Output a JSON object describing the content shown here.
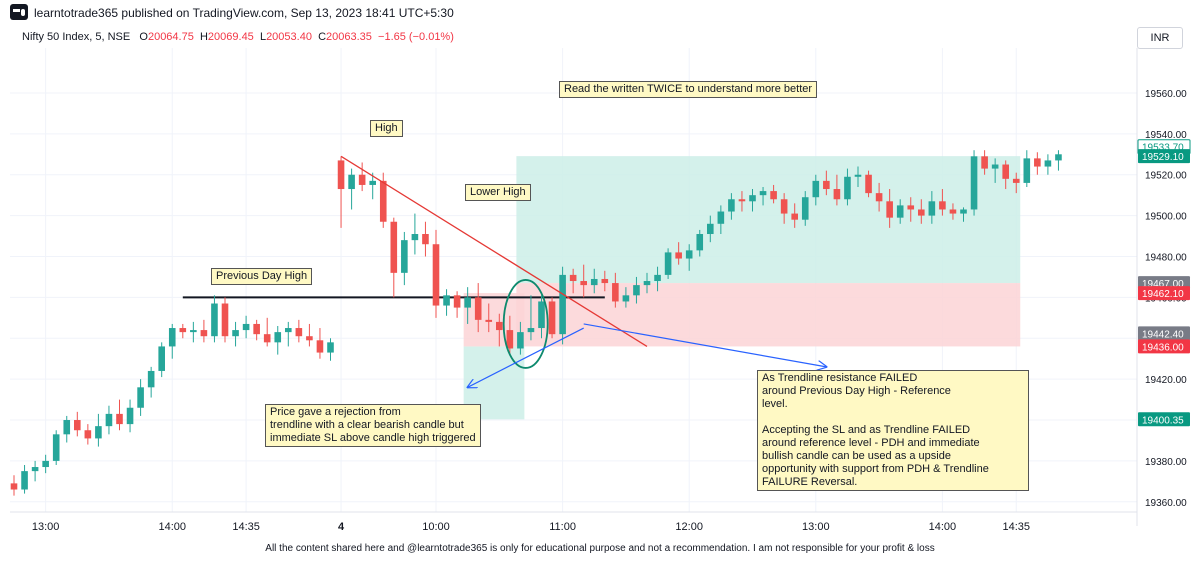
{
  "header": {
    "publish_line": "learntotrade365 published on TradingView.com, Sep 13, 2023 18:41 UTC+5:30",
    "symbol": "Nifty 50 Index, 5, NSE",
    "ohlc": {
      "o_label": "O",
      "o_value": "20064.75",
      "h_label": "H",
      "h_value": "20069.45",
      "l_label": "L",
      "l_value": "20053.40",
      "c_label": "C",
      "c_value": "20063.35",
      "change": "−1.65 (−0.01%)"
    },
    "currency_button": "INR"
  },
  "footer_text": "All the content shared here and @learntotrade365 is only for educational purpose and not a recommendation. I am not responsible for your profit & loss",
  "colors": {
    "bull": "#26a69a",
    "bear": "#ef5350",
    "trendline": "#e53935",
    "arrow": "#2962ff",
    "pdh_line": "#131722",
    "ellipse": "#0e8a6e",
    "profit_zone": "#cdeee7",
    "loss_zone": "#fbd4d6",
    "note_bg": "#fff9c4"
  },
  "annotations": {
    "top_note": "Read the written TWICE to understand more better",
    "high": "High",
    "lower_high": "Lower High",
    "pdh": "Previous Day High",
    "rejection_note": "Price gave a rejection from\ntrendline with a clear bearish candle but\nimmediate SL above candle high triggered",
    "failure_note": "As Trendline resistance FAILED\naround Previous Day High - Reference\nlevel.\n\nAccepting the SL and as Trendline FAILED\naround reference level - PDH and immediate\nbullish candle can be used as a upside\nopportunity with support from PDH & Trendline\nFAILURE Reversal."
  },
  "chart_data": {
    "type": "candlestick",
    "title": "",
    "xlabel": "",
    "ylabel": "",
    "ylim": [
      19355,
      19582
    ],
    "grid": true,
    "y_ticks": [
      19360,
      19380,
      19400,
      19420,
      19440,
      19460,
      19480,
      19500,
      19520,
      19540,
      19560
    ],
    "y_tick_labels": [
      "19360.00",
      "19380.00",
      "19400.00",
      "19420.00",
      "19440.00",
      "19460.00",
      "19480.00",
      "19500.00",
      "19520.00",
      "19540.00",
      "19560.00"
    ],
    "x_tick_labels": [
      {
        "label": "13:00",
        "bar": 3
      },
      {
        "label": "14:00",
        "bar": 15
      },
      {
        "label": "14:35",
        "bar": 22
      },
      {
        "label": "4",
        "bar": 31
      },
      {
        "label": "10:00",
        "bar": 40
      },
      {
        "label": "11:00",
        "bar": 52
      },
      {
        "label": "12:00",
        "bar": 64
      },
      {
        "label": "13:00",
        "bar": 76
      },
      {
        "label": "14:00",
        "bar": 88
      },
      {
        "label": "14:35",
        "bar": 95
      }
    ],
    "candles": [
      [
        19369,
        19373,
        19363,
        19366
      ],
      [
        19366,
        19378,
        19364,
        19375
      ],
      [
        19375,
        19380,
        19370,
        19377
      ],
      [
        19377,
        19383,
        19374,
        19380
      ],
      [
        19380,
        19395,
        19378,
        19393
      ],
      [
        19393,
        19402,
        19389,
        19400
      ],
      [
        19400,
        19404,
        19392,
        19395
      ],
      [
        19395,
        19398,
        19388,
        19391
      ],
      [
        19391,
        19403,
        19387,
        19397
      ],
      [
        19397,
        19407,
        19393,
        19403
      ],
      [
        19403,
        19410,
        19395,
        19398
      ],
      [
        19398,
        19410,
        19394,
        19406
      ],
      [
        19406,
        19420,
        19402,
        19416
      ],
      [
        19416,
        19426,
        19411,
        19424
      ],
      [
        19424,
        19438,
        19421,
        19436
      ],
      [
        19436,
        19447,
        19430,
        19445
      ],
      [
        19445,
        19447,
        19440,
        19443
      ],
      [
        19443,
        19448,
        19438,
        19444
      ],
      [
        19444,
        19449,
        19438,
        19441
      ],
      [
        19441,
        19461,
        19438,
        19457
      ],
      [
        19457,
        19460,
        19438,
        19441
      ],
      [
        19441,
        19448,
        19436,
        19444
      ],
      [
        19444,
        19451,
        19440,
        19447
      ],
      [
        19447,
        19449,
        19439,
        19442
      ],
      [
        19442,
        19450,
        19436,
        19438
      ],
      [
        19438,
        19446,
        19432,
        19443
      ],
      [
        19443,
        19448,
        19436,
        19445
      ],
      [
        19445,
        19449,
        19438,
        19441
      ],
      [
        19441,
        19447,
        19436,
        19439
      ],
      [
        19439,
        19445,
        19430,
        19433
      ],
      [
        19433,
        19440,
        19429,
        19438
      ],
      [
        19527,
        19529,
        19494,
        19513
      ],
      [
        19513,
        19523,
        19503,
        19520
      ],
      [
        19520,
        19526,
        19512,
        19515
      ],
      [
        19515,
        19521,
        19508,
        19517
      ],
      [
        19517,
        19521,
        19494,
        19497
      ],
      [
        19497,
        19499,
        19460,
        19472
      ],
      [
        19472,
        19492,
        19466,
        19488
      ],
      [
        19488,
        19501,
        19481,
        19491
      ],
      [
        19491,
        19497,
        19480,
        19486
      ],
      [
        19486,
        19493,
        19450,
        19456
      ],
      [
        19456,
        19464,
        19451,
        19461
      ],
      [
        19461,
        19463,
        19450,
        19455
      ],
      [
        19455,
        19465,
        19447,
        19460
      ],
      [
        19460,
        19467,
        19443,
        19449
      ],
      [
        19449,
        19457,
        19443,
        19448
      ],
      [
        19448,
        19452,
        19436,
        19444
      ],
      [
        19444,
        19451,
        19432,
        19435
      ],
      [
        19435,
        19448,
        19432,
        19443
      ],
      [
        19443,
        19461,
        19439,
        19445
      ],
      [
        19445,
        19461,
        19440,
        19458
      ],
      [
        19458,
        19460,
        19440,
        19442
      ],
      [
        19442,
        19475,
        19437,
        19471
      ],
      [
        19471,
        19474,
        19462,
        19468
      ],
      [
        19468,
        19476,
        19460,
        19466
      ],
      [
        19466,
        19474,
        19462,
        19469
      ],
      [
        19469,
        19473,
        19463,
        19467
      ],
      [
        19467,
        19472,
        19455,
        19458
      ],
      [
        19458,
        19465,
        19455,
        19461
      ],
      [
        19461,
        19470,
        19457,
        19466
      ],
      [
        19466,
        19472,
        19462,
        19468
      ],
      [
        19468,
        19475,
        19463,
        19471
      ],
      [
        19471,
        19484,
        19469,
        19482
      ],
      [
        19482,
        19487,
        19476,
        19479
      ],
      [
        19479,
        19486,
        19473,
        19483
      ],
      [
        19483,
        19493,
        19480,
        19491
      ],
      [
        19491,
        19500,
        19487,
        19496
      ],
      [
        19496,
        19505,
        19491,
        19502
      ],
      [
        19502,
        19511,
        19498,
        19508
      ],
      [
        19508,
        19512,
        19502,
        19507
      ],
      [
        19507,
        19513,
        19502,
        19510
      ],
      [
        19510,
        19514,
        19505,
        19512
      ],
      [
        19512,
        19515,
        19506,
        19508
      ],
      [
        19508,
        19511,
        19496,
        19501
      ],
      [
        19501,
        19506,
        19494,
        19498
      ],
      [
        19498,
        19512,
        19495,
        19509
      ],
      [
        19509,
        19520,
        19505,
        19517
      ],
      [
        19517,
        19522,
        19510,
        19513
      ],
      [
        19513,
        19520,
        19505,
        19508
      ],
      [
        19508,
        19523,
        19505,
        19519
      ],
      [
        19519,
        19524,
        19514,
        19520
      ],
      [
        19520,
        19522,
        19509,
        19511
      ],
      [
        19511,
        19516,
        19502,
        19507
      ],
      [
        19507,
        19513,
        19494,
        19499
      ],
      [
        19499,
        19508,
        19496,
        19505
      ],
      [
        19505,
        19509,
        19497,
        19503
      ],
      [
        19503,
        19508,
        19496,
        19500
      ],
      [
        19500,
        19512,
        19496,
        19507
      ],
      [
        19507,
        19513,
        19500,
        19503
      ],
      [
        19503,
        19506,
        19498,
        19501
      ],
      [
        19501,
        19504,
        19497,
        19503
      ],
      [
        19503,
        19532,
        19500,
        19529
      ],
      [
        19529,
        19532,
        19520,
        19523
      ],
      [
        19523,
        19528,
        19516,
        19525
      ],
      [
        19525,
        19527,
        19513,
        19518
      ],
      [
        19518,
        19521,
        19511,
        19516
      ],
      [
        19516,
        19532,
        19514,
        19528
      ],
      [
        19528,
        19531,
        19520,
        19524
      ],
      [
        19524,
        19530,
        19520,
        19527
      ],
      [
        19527,
        19532,
        19522,
        19530
      ]
    ],
    "price_labels": [
      {
        "text": "19533.70",
        "value": 19533.7,
        "style": "outline-teal"
      },
      {
        "text": "19529.10",
        "value": 19529.1,
        "style": "teal"
      },
      {
        "text": "19467.00",
        "value": 19467.0,
        "style": "gray"
      },
      {
        "text": "19462.10",
        "value": 19462.1,
        "style": "red"
      },
      {
        "text": "19442.40",
        "value": 19442.4,
        "style": "gray"
      },
      {
        "text": "19436.00",
        "value": 19436.0,
        "style": "red"
      },
      {
        "text": "19400.35",
        "value": 19400.35,
        "style": "teal"
      }
    ],
    "pdh_level": 19460,
    "trades": [
      {
        "name": "short-trade",
        "bar_start": 43,
        "bar_end": 48,
        "entry": 19436,
        "target": 19400.35,
        "stop": 19462.1
      },
      {
        "name": "long-trade",
        "bar_start": 48,
        "bar_end": 95,
        "entry": 19467,
        "target": 19529.1,
        "stop": 19436
      }
    ]
  }
}
